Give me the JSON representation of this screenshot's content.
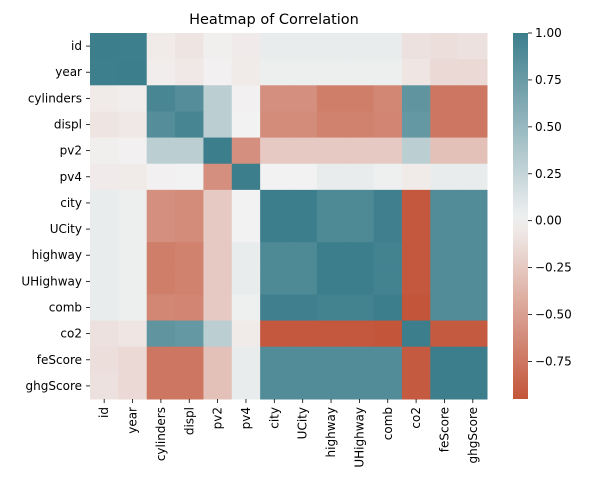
{
  "chart_data": {
    "type": "heatmap",
    "title": "Heatmap of Correlation",
    "labels": [
      "id",
      "year",
      "cylinders",
      "displ",
      "pv2",
      "pv4",
      "city",
      "UCity",
      "highway",
      "UHighway",
      "comb",
      "co2",
      "feScore",
      "ghgScore"
    ],
    "values": [
      [
        1.0,
        0.99,
        -0.05,
        -0.08,
        -0.02,
        -0.04,
        0.05,
        0.05,
        0.05,
        0.05,
        0.05,
        -0.1,
        -0.12,
        -0.1
      ],
      [
        0.99,
        1.0,
        -0.03,
        -0.06,
        -0.01,
        -0.05,
        0.03,
        0.03,
        0.03,
        0.03,
        0.03,
        -0.07,
        -0.15,
        -0.15
      ],
      [
        -0.05,
        -0.03,
        0.93,
        0.86,
        0.3,
        -0.01,
        -0.6,
        -0.6,
        -0.7,
        -0.7,
        -0.65,
        0.8,
        -0.75,
        -0.75
      ],
      [
        -0.08,
        -0.06,
        0.86,
        0.94,
        0.3,
        0.0,
        -0.62,
        -0.62,
        -0.68,
        -0.68,
        -0.66,
        0.78,
        -0.75,
        -0.75
      ],
      [
        -0.02,
        -0.01,
        0.3,
        0.3,
        1.0,
        -0.6,
        -0.25,
        -0.25,
        -0.25,
        -0.25,
        -0.25,
        0.3,
        -0.3,
        -0.3
      ],
      [
        -0.04,
        -0.05,
        -0.01,
        0.0,
        -0.6,
        1.0,
        0.0,
        0.0,
        0.05,
        0.05,
        0.02,
        -0.05,
        0.05,
        0.05
      ],
      [
        0.05,
        0.03,
        -0.6,
        -0.62,
        -0.25,
        0.0,
        1.0,
        1.0,
        0.9,
        0.9,
        0.98,
        -0.93,
        0.88,
        0.88
      ],
      [
        0.05,
        0.03,
        -0.6,
        -0.62,
        -0.25,
        0.0,
        1.0,
        1.0,
        0.9,
        0.9,
        0.98,
        -0.93,
        0.88,
        0.88
      ],
      [
        0.05,
        0.03,
        -0.7,
        -0.68,
        -0.25,
        0.05,
        0.9,
        0.9,
        1.0,
        1.0,
        0.96,
        -0.93,
        0.88,
        0.88
      ],
      [
        0.05,
        0.03,
        -0.7,
        -0.68,
        -0.25,
        0.05,
        0.9,
        0.9,
        1.0,
        1.0,
        0.96,
        -0.93,
        0.88,
        0.88
      ],
      [
        0.05,
        0.03,
        -0.65,
        -0.66,
        -0.25,
        0.02,
        0.98,
        0.98,
        0.96,
        0.96,
        1.0,
        -0.95,
        0.88,
        0.88
      ],
      [
        -0.1,
        -0.07,
        0.8,
        0.78,
        0.3,
        -0.05,
        -0.93,
        -0.93,
        -0.93,
        -0.93,
        -0.95,
        1.0,
        -0.92,
        -0.92
      ],
      [
        -0.12,
        -0.15,
        -0.75,
        -0.75,
        -0.3,
        0.05,
        0.88,
        0.88,
        0.88,
        0.88,
        0.88,
        -0.92,
        1.0,
        1.0
      ],
      [
        -0.1,
        -0.15,
        -0.75,
        -0.75,
        -0.3,
        0.05,
        0.88,
        0.88,
        0.88,
        0.88,
        0.88,
        -0.92,
        1.0,
        1.0
      ]
    ],
    "vmin": -0.95,
    "vmax": 1.0,
    "colorbar_ticks": [
      "1.00",
      "0.75",
      "0.50",
      "0.25",
      "0.00",
      "−0.25",
      "−0.50",
      "−0.75"
    ],
    "colorbar_tick_values": [
      1.0,
      0.75,
      0.5,
      0.25,
      0.0,
      -0.25,
      -0.5,
      -0.75
    ],
    "colormap": {
      "negative": "#c3553a",
      "center": "#f2f2f2",
      "positive": "#3c7e8c"
    }
  }
}
